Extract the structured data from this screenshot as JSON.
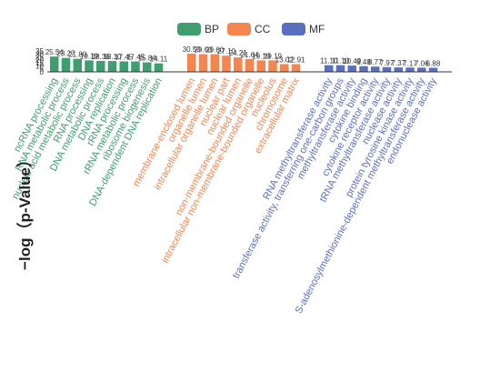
{
  "chart_data": {
    "type": "bar",
    "ylabel": "−log（p-Value）",
    "ylim": [
      0,
      35
    ],
    "grid": false,
    "legend_position": "top-center",
    "legend": [
      {
        "name": "BP",
        "color": "#3f9e6e"
      },
      {
        "name": "CC",
        "color": "#f5854f"
      },
      {
        "name": "MF",
        "color": "#5a6fc0"
      }
    ],
    "series": [
      {
        "name": "BP",
        "color": "#3f9e6e",
        "categories": [
          "ncRNA processing",
          "RNA metabolic process",
          "nucleic acid metabolic process",
          "RNA processing",
          "DNA metabolic process",
          "DNA replication",
          "rRNA processing",
          "rRNA metabolic process",
          "ribosome biogenesis",
          "DNA-dependent DNA replication"
        ],
        "values": [
          25.54,
          23.27,
          21.8,
          19.19,
          18.36,
          18.1,
          17.45,
          17.45,
          15.84,
          14.11
        ],
        "value_labels": [
          "25.54",
          "23.27",
          "21.80",
          "19.19",
          "18.36",
          "18.10",
          "17.45",
          "17.45",
          "15.84",
          "14.11"
        ]
      },
      {
        "name": "CC",
        "color": "#f5854f",
        "categories": [
          "membrane-enclosed lumen",
          "organelle lumen",
          "intracellular organelle lumen",
          "nuclear part",
          "nuclear lumen",
          "non-membrane-bounded organelle",
          "intracellular non-membrane-bounded organelle",
          "nucleolus",
          "chromosome",
          "extracellular matrix"
        ],
        "values": [
          30.5,
          29.6,
          29.6,
          27.1,
          24.21,
          21.64,
          19.19,
          19.19,
          13.02,
          12.91
        ],
        "value_labels": [
          "30.50",
          "29.60",
          "29.60",
          "27.10",
          "24.21",
          "21.64",
          "19.19",
          "19.19",
          "13.02",
          "12.91"
        ]
      },
      {
        "name": "MF",
        "color": "#5a6fc0",
        "categories": [
          "RNA methyltransferase activity",
          "transferase activity, transferring one-carbon groups",
          "methyltransferase activity",
          "cytokine binding",
          "cytokine receptor activity",
          "tRNA methyltransferase activity",
          "nuclease activity",
          "protein tyrosine kinase activity",
          "S-adenosylmethionine-dependent methyltransferase activity",
          "endonuclease activity"
        ],
        "values": [
          11.1,
          11.1,
          10.49,
          9.48,
          8.77,
          7.97,
          7.37,
          7.17,
          7.06,
          6.88
        ],
        "value_labels": [
          "11.10",
          "11.10",
          "10.49",
          "9.48",
          "8.77",
          "7.97",
          "7.37",
          "7.17",
          "7.06",
          "6.88"
        ]
      }
    ],
    "y_ticks": [
      0,
      5,
      10,
      15,
      20,
      25,
      30,
      35
    ]
  }
}
